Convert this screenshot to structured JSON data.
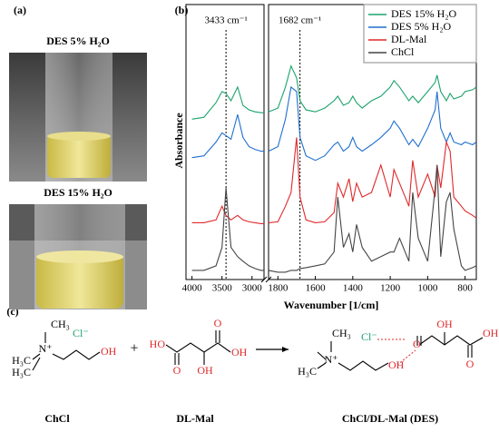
{
  "panels": [
    "(a)",
    "(b)",
    "(c)"
  ],
  "photos": [
    {
      "caption": "DES 5% H₂O"
    },
    {
      "caption": "DES 15% H₂O"
    }
  ],
  "chart_data": {
    "type": "line",
    "x_label": "Wavenumber [1/cm]",
    "y_label": "Absorbance",
    "xlim": [
      4100,
      740
    ],
    "x_break": [
      2800,
      1850
    ],
    "xticks": [
      4000,
      3500,
      3000,
      1800,
      1600,
      1400,
      1200,
      1000,
      800
    ],
    "ylim": [
      0,
      300
    ],
    "legend": "upper-right",
    "markers": [
      {
        "x": 3433,
        "label": "3433 cm⁻¹"
      },
      {
        "x": 1682,
        "label": "1682 cm⁻¹"
      }
    ],
    "x": [
      4000,
      3800,
      3600,
      3500,
      3433,
      3350,
      3240,
      3150,
      3050,
      2950,
      2850,
      2800,
      2300,
      1850,
      1800,
      1760,
      1730,
      1700,
      1682,
      1650,
      1600,
      1550,
      1500,
      1480,
      1450,
      1420,
      1400,
      1380,
      1350,
      1300,
      1250,
      1200,
      1180,
      1150,
      1100,
      1080,
      1050,
      1000,
      960,
      950,
      930,
      900,
      880,
      860,
      820,
      800,
      760,
      740
    ],
    "series": [
      {
        "name": "DES 15% H₂O",
        "color": "#1aa36b",
        "values": [
          175,
          177,
          193,
          205,
          203,
          195,
          210,
          190,
          185,
          183,
          182,
          182,
          null,
          183,
          187,
          210,
          233,
          220,
          195,
          185,
          183,
          187,
          195,
          200,
          190,
          193,
          200,
          193,
          187,
          195,
          200,
          210,
          217,
          210,
          195,
          200,
          193,
          205,
          215,
          223,
          205,
          195,
          203,
          197,
          200,
          205,
          207,
          210
        ]
      },
      {
        "name": "DES 5% H₂O",
        "color": "#1f6fd0",
        "values": [
          133,
          135,
          150,
          160,
          157,
          153,
          180,
          155,
          145,
          142,
          140,
          140,
          null,
          140,
          145,
          175,
          210,
          205,
          155,
          135,
          130,
          135,
          147,
          150,
          140,
          145,
          155,
          145,
          140,
          147,
          155,
          165,
          173,
          165,
          147,
          153,
          145,
          165,
          185,
          205,
          165,
          150,
          160,
          150,
          147,
          150,
          147,
          150
        ]
      },
      {
        "name": "DL-Mal",
        "color": "#e0282a",
        "values": [
          62,
          62,
          65,
          80,
          70,
          65,
          70,
          65,
          63,
          62,
          61,
          61,
          null,
          62,
          63,
          80,
          95,
          155,
          90,
          65,
          62,
          63,
          73,
          105,
          90,
          110,
          85,
          105,
          90,
          95,
          125,
          90,
          120,
          105,
          80,
          130,
          90,
          115,
          90,
          125,
          100,
          150,
          140,
          90,
          80,
          75,
          70,
          67
        ]
      },
      {
        "name": "ChCl",
        "color": "#444444",
        "values": [
          10,
          10,
          15,
          35,
          100,
          35,
          25,
          20,
          15,
          12,
          10,
          10,
          null,
          10,
          8,
          8,
          10,
          10,
          12,
          13,
          15,
          17,
          30,
          90,
          35,
          50,
          30,
          60,
          35,
          20,
          25,
          30,
          30,
          45,
          20,
          95,
          45,
          20,
          100,
          125,
          25,
          85,
          95,
          55,
          15,
          10,
          13,
          15
        ]
      }
    ]
  },
  "scheme": {
    "plus": "+",
    "chcl": {
      "caption": "ChCl",
      "atoms": [
        "CH₃",
        "N⁺",
        "H₃C",
        "H₃C",
        "OH",
        "Cl⁻"
      ]
    },
    "dlmal": {
      "caption": "DL-Mal",
      "atoms": [
        "HO",
        "O",
        "OH",
        "O",
        "OH"
      ]
    },
    "des": {
      "caption": "ChCl/DL-Mal (DES)",
      "atoms": [
        "CH₃",
        "N⁺",
        "H₃C",
        "OH",
        "Cl⁻",
        "O",
        "OH",
        "O",
        "OH"
      ]
    }
  }
}
